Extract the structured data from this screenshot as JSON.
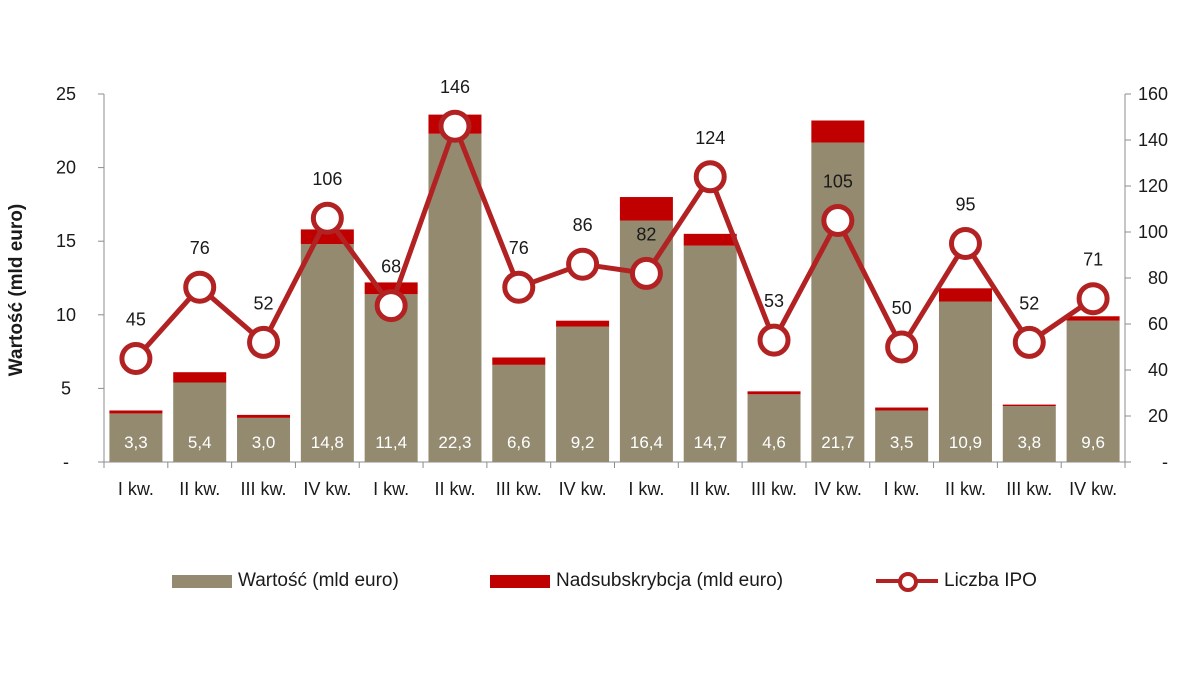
{
  "chart_data": {
    "type": "bar",
    "ylabel": "Wartość (mld euro)",
    "categories": [
      "I kw.",
      "II kw.",
      "III kw.",
      "IV kw.",
      "I kw.",
      "II kw.",
      "III kw.",
      "IV kw.",
      "I kw.",
      "II kw.",
      "III kw.",
      "IV kw.",
      "I kw.",
      "II kw.",
      "III kw.",
      "IV kw."
    ],
    "ylim": [
      0,
      25
    ],
    "y_ticks": [
      "-",
      "5",
      "10",
      "15",
      "20",
      "25"
    ],
    "y2lim": [
      0,
      160
    ],
    "y2_ticks": [
      "-",
      "20",
      "40",
      "60",
      "80",
      "100",
      "120",
      "140",
      "160"
    ],
    "legend_position": "bottom",
    "series": [
      {
        "name": "Wartość (mld euro)",
        "kind": "stacked-bar",
        "color": "#938a70",
        "values": [
          3.3,
          5.4,
          3.0,
          14.8,
          11.4,
          22.3,
          6.6,
          9.2,
          16.4,
          14.7,
          4.6,
          21.7,
          3.5,
          10.9,
          3.8,
          9.6
        ],
        "labels": [
          "3,3",
          "5,4",
          "3,0",
          "14,8",
          "11,4",
          "22,3",
          "6,6",
          "9,2",
          "16,4",
          "14,7",
          "4,6",
          "21,7",
          "3,5",
          "10,9",
          "3,8",
          "9,6"
        ]
      },
      {
        "name": "Nadsubskrybcja (mld euro)",
        "kind": "stacked-bar",
        "color": "#c00000",
        "values": [
          0.2,
          0.7,
          0.2,
          1.0,
          0.8,
          1.3,
          0.5,
          0.4,
          1.6,
          0.8,
          0.2,
          1.5,
          0.2,
          0.9,
          0.1,
          0.3
        ]
      },
      {
        "name": "Liczba IPO",
        "kind": "line-secondary-axis",
        "color": "#b22222",
        "values": [
          45,
          76,
          52,
          106,
          68,
          146,
          76,
          86,
          82,
          124,
          53,
          105,
          50,
          95,
          52,
          71
        ],
        "labels": [
          "45",
          "76",
          "52",
          "106",
          "68",
          "146",
          "76",
          "86",
          "82",
          "124",
          "53",
          "105",
          "50",
          "95",
          "52",
          "71"
        ]
      }
    ]
  }
}
